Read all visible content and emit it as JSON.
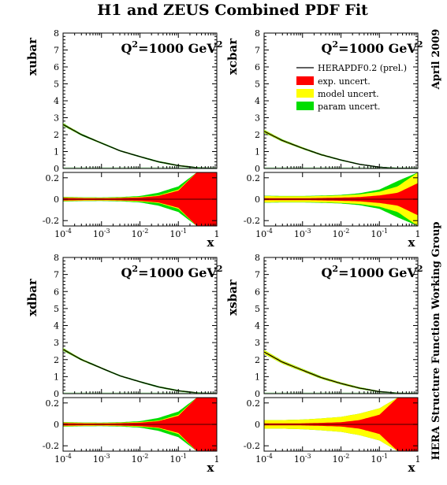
{
  "title": "H1 and ZEUS Combined PDF Fit",
  "side_labels": {
    "date": "April 2009",
    "group": "HERA Structure Function Working Group"
  },
  "colors": {
    "exp": "#ff0000",
    "model": "#ffff00",
    "param": "#00dd00",
    "central": "#000000"
  },
  "legend": {
    "central": "HERAPDF0.2 (prel.)",
    "exp": "exp. uncert.",
    "model": "model uncert.",
    "param": "param uncert."
  },
  "scale_label": {
    "base": "Q",
    "exp": "2",
    "middle": "=1000 GeV",
    "unit_exp": "2"
  },
  "x_axis": {
    "label": "x",
    "ticks": [
      {
        "base": "10",
        "exp": "-4"
      },
      {
        "base": "10",
        "exp": "-3"
      },
      {
        "base": "10",
        "exp": "-2"
      },
      {
        "base": "10",
        "exp": "-1"
      },
      {
        "base": "1",
        "exp": ""
      }
    ]
  },
  "top_y_ticks": [
    "0",
    "1",
    "2",
    "3",
    "4",
    "5",
    "6",
    "7",
    "8"
  ],
  "ratio_y_ticks": [
    "0.2",
    "0",
    "-0.2"
  ],
  "chart_data": [
    {
      "type": "line",
      "panel": "xubar",
      "ylabel": "xubar",
      "xlabel": "x",
      "xscale": "log",
      "xlim": [
        0.0001,
        1
      ],
      "ylim": [
        0,
        8
      ],
      "ratio_ylim": [
        -0.25,
        0.25
      ],
      "x": [
        0.0001,
        0.0003,
        0.001,
        0.003,
        0.01,
        0.03,
        0.1,
        0.3,
        1
      ],
      "central": [
        2.6,
        2.0,
        1.5,
        1.05,
        0.7,
        0.4,
        0.17,
        0.05,
        0.0
      ],
      "band_exp": [
        0.012,
        0.01,
        0.009,
        0.011,
        0.016,
        0.03,
        0.08,
        0.25,
        0.25
      ],
      "band_model": [
        0.018,
        0.015,
        0.014,
        0.016,
        0.022,
        0.035,
        0.09,
        0.25,
        0.25
      ],
      "band_param": [
        0.022,
        0.018,
        0.017,
        0.02,
        0.03,
        0.06,
        0.12,
        0.25,
        0.25
      ]
    },
    {
      "type": "line",
      "panel": "xcbar",
      "ylabel": "xcbar",
      "xlabel": "x",
      "xscale": "log",
      "xlim": [
        0.0001,
        1
      ],
      "ylim": [
        0,
        8
      ],
      "ratio_ylim": [
        -0.25,
        0.25
      ],
      "x": [
        0.0001,
        0.0003,
        0.001,
        0.003,
        0.01,
        0.03,
        0.1,
        0.3,
        1
      ],
      "central": [
        2.2,
        1.65,
        1.2,
        0.82,
        0.5,
        0.25,
        0.08,
        0.015,
        0.0
      ],
      "band_exp": [
        0.01,
        0.009,
        0.009,
        0.011,
        0.015,
        0.02,
        0.035,
        0.06,
        0.15
      ],
      "band_model": [
        0.03,
        0.027,
        0.027,
        0.03,
        0.035,
        0.045,
        0.07,
        0.12,
        0.25
      ],
      "band_param": [
        0.033,
        0.03,
        0.03,
        0.034,
        0.04,
        0.055,
        0.09,
        0.17,
        0.25
      ]
    },
    {
      "type": "line",
      "panel": "xdbar",
      "ylabel": "xdbar",
      "xlabel": "x",
      "xscale": "log",
      "xlim": [
        0.0001,
        1
      ],
      "ylim": [
        0,
        8
      ],
      "ratio_ylim": [
        -0.25,
        0.25
      ],
      "x": [
        0.0001,
        0.0003,
        0.001,
        0.003,
        0.01,
        0.03,
        0.1,
        0.3,
        1
      ],
      "central": [
        2.6,
        2.0,
        1.5,
        1.05,
        0.7,
        0.4,
        0.17,
        0.05,
        0.0
      ],
      "band_exp": [
        0.012,
        0.01,
        0.009,
        0.011,
        0.016,
        0.03,
        0.08,
        0.25,
        0.25
      ],
      "band_model": [
        0.018,
        0.015,
        0.014,
        0.016,
        0.022,
        0.035,
        0.09,
        0.25,
        0.25
      ],
      "band_param": [
        0.022,
        0.018,
        0.017,
        0.02,
        0.03,
        0.06,
        0.12,
        0.25,
        0.25
      ]
    },
    {
      "type": "line",
      "panel": "xsbar",
      "ylabel": "xsbar",
      "xlabel": "x",
      "xscale": "log",
      "xlim": [
        0.0001,
        1
      ],
      "ylim": [
        0,
        8
      ],
      "ratio_ylim": [
        -0.25,
        0.25
      ],
      "x": [
        0.0001,
        0.0003,
        0.001,
        0.003,
        0.01,
        0.03,
        0.1,
        0.3,
        1
      ],
      "central": [
        2.45,
        1.85,
        1.38,
        0.95,
        0.6,
        0.33,
        0.12,
        0.03,
        0.0
      ],
      "band_exp": [
        0.01,
        0.009,
        0.01,
        0.014,
        0.02,
        0.04,
        0.09,
        0.25,
        0.25
      ],
      "band_model": [
        0.04,
        0.04,
        0.045,
        0.055,
        0.07,
        0.1,
        0.15,
        0.25,
        0.25
      ],
      "band_param": [
        0.04,
        0.04,
        0.045,
        0.055,
        0.07,
        0.1,
        0.15,
        0.25,
        0.25
      ]
    }
  ]
}
